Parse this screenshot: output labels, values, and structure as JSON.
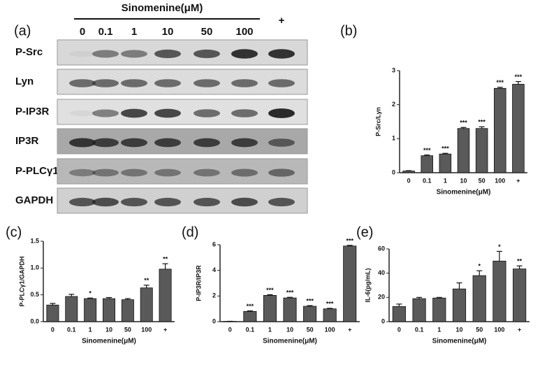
{
  "blot": {
    "panel": "(a)",
    "treatment": "Sinomenine(μM)",
    "lanes": [
      "0",
      "0.1",
      "1",
      "10",
      "50",
      "100",
      "+"
    ],
    "rows": [
      "P-Src",
      "Lyn",
      "P-IP3R",
      "IP3R",
      "P-PLCγ1",
      "GAPDH"
    ]
  },
  "chart_data": [
    {
      "type": "bar",
      "panel": "(b)",
      "ylabel": "P-Src/Lyn",
      "xlabel": "Sinomenine(μM)",
      "color": "#5a5a5a",
      "categories": [
        "0",
        "0.1",
        "1",
        "10",
        "50",
        "100",
        "+"
      ],
      "values": [
        0.05,
        0.5,
        0.55,
        1.3,
        1.3,
        2.48,
        2.6
      ],
      "errors": [
        0.01,
        0.02,
        0.02,
        0.03,
        0.05,
        0.03,
        0.08
      ],
      "significance": [
        null,
        "***",
        "***",
        "***",
        "***",
        "***",
        "***"
      ],
      "ylim": [
        0,
        3
      ],
      "yticks": [
        0,
        1,
        2,
        3
      ]
    },
    {
      "type": "bar",
      "panel": "(c)",
      "ylabel": "P-PLCγ1/GAPDH",
      "xlabel": "Sinomenine(μM)",
      "color": "#5a5a5a",
      "categories": [
        "0",
        "0.1",
        "1",
        "10",
        "50",
        "100",
        "+"
      ],
      "values": [
        0.31,
        0.47,
        0.43,
        0.43,
        0.41,
        0.63,
        0.98
      ],
      "errors": [
        0.03,
        0.04,
        0.01,
        0.02,
        0.02,
        0.05,
        0.1
      ],
      "significance": [
        null,
        null,
        "*",
        null,
        null,
        "**",
        "**"
      ],
      "ylim": [
        0,
        1.5
      ],
      "yticks": [
        {
          "value": 0,
          "label": "0.0"
        },
        0.5,
        {
          "value": 1,
          "label": "1.0"
        },
        1.5
      ]
    },
    {
      "type": "bar",
      "panel": "(d)",
      "ylabel": "P-IP3R/IP3R",
      "xlabel": "Sinomenine(μM)",
      "color": "#5a5a5a",
      "categories": [
        "0",
        "0.1",
        "1",
        "10",
        "50",
        "100",
        "+"
      ],
      "values": [
        0.02,
        0.8,
        2.05,
        1.85,
        1.2,
        1.0,
        5.9
      ],
      "errors": [
        0.01,
        0.04,
        0.05,
        0.05,
        0.05,
        0.04,
        0.05
      ],
      "significance": [
        null,
        "***",
        "***",
        "***",
        "***",
        "***",
        "***"
      ],
      "ylim": [
        0,
        6
      ],
      "yticks": [
        0,
        2,
        4,
        6
      ]
    },
    {
      "type": "bar",
      "panel": "(e)",
      "ylabel": "IL-6(pg/mL)",
      "xlabel": "Sinomenine(μM)",
      "color": "#5a5a5a",
      "categories": [
        "0",
        "0.1",
        "1",
        "10",
        "50",
        "100",
        "+"
      ],
      "values": [
        12.5,
        19,
        19.5,
        27,
        38,
        50,
        43.5
      ],
      "errors": [
        2,
        1,
        0.5,
        5,
        4,
        8,
        2.5
      ],
      "significance": [
        null,
        null,
        null,
        null,
        "*",
        "*",
        "**"
      ],
      "ylim": [
        0,
        60
      ],
      "yticks": [
        0,
        20,
        40,
        60
      ]
    }
  ]
}
